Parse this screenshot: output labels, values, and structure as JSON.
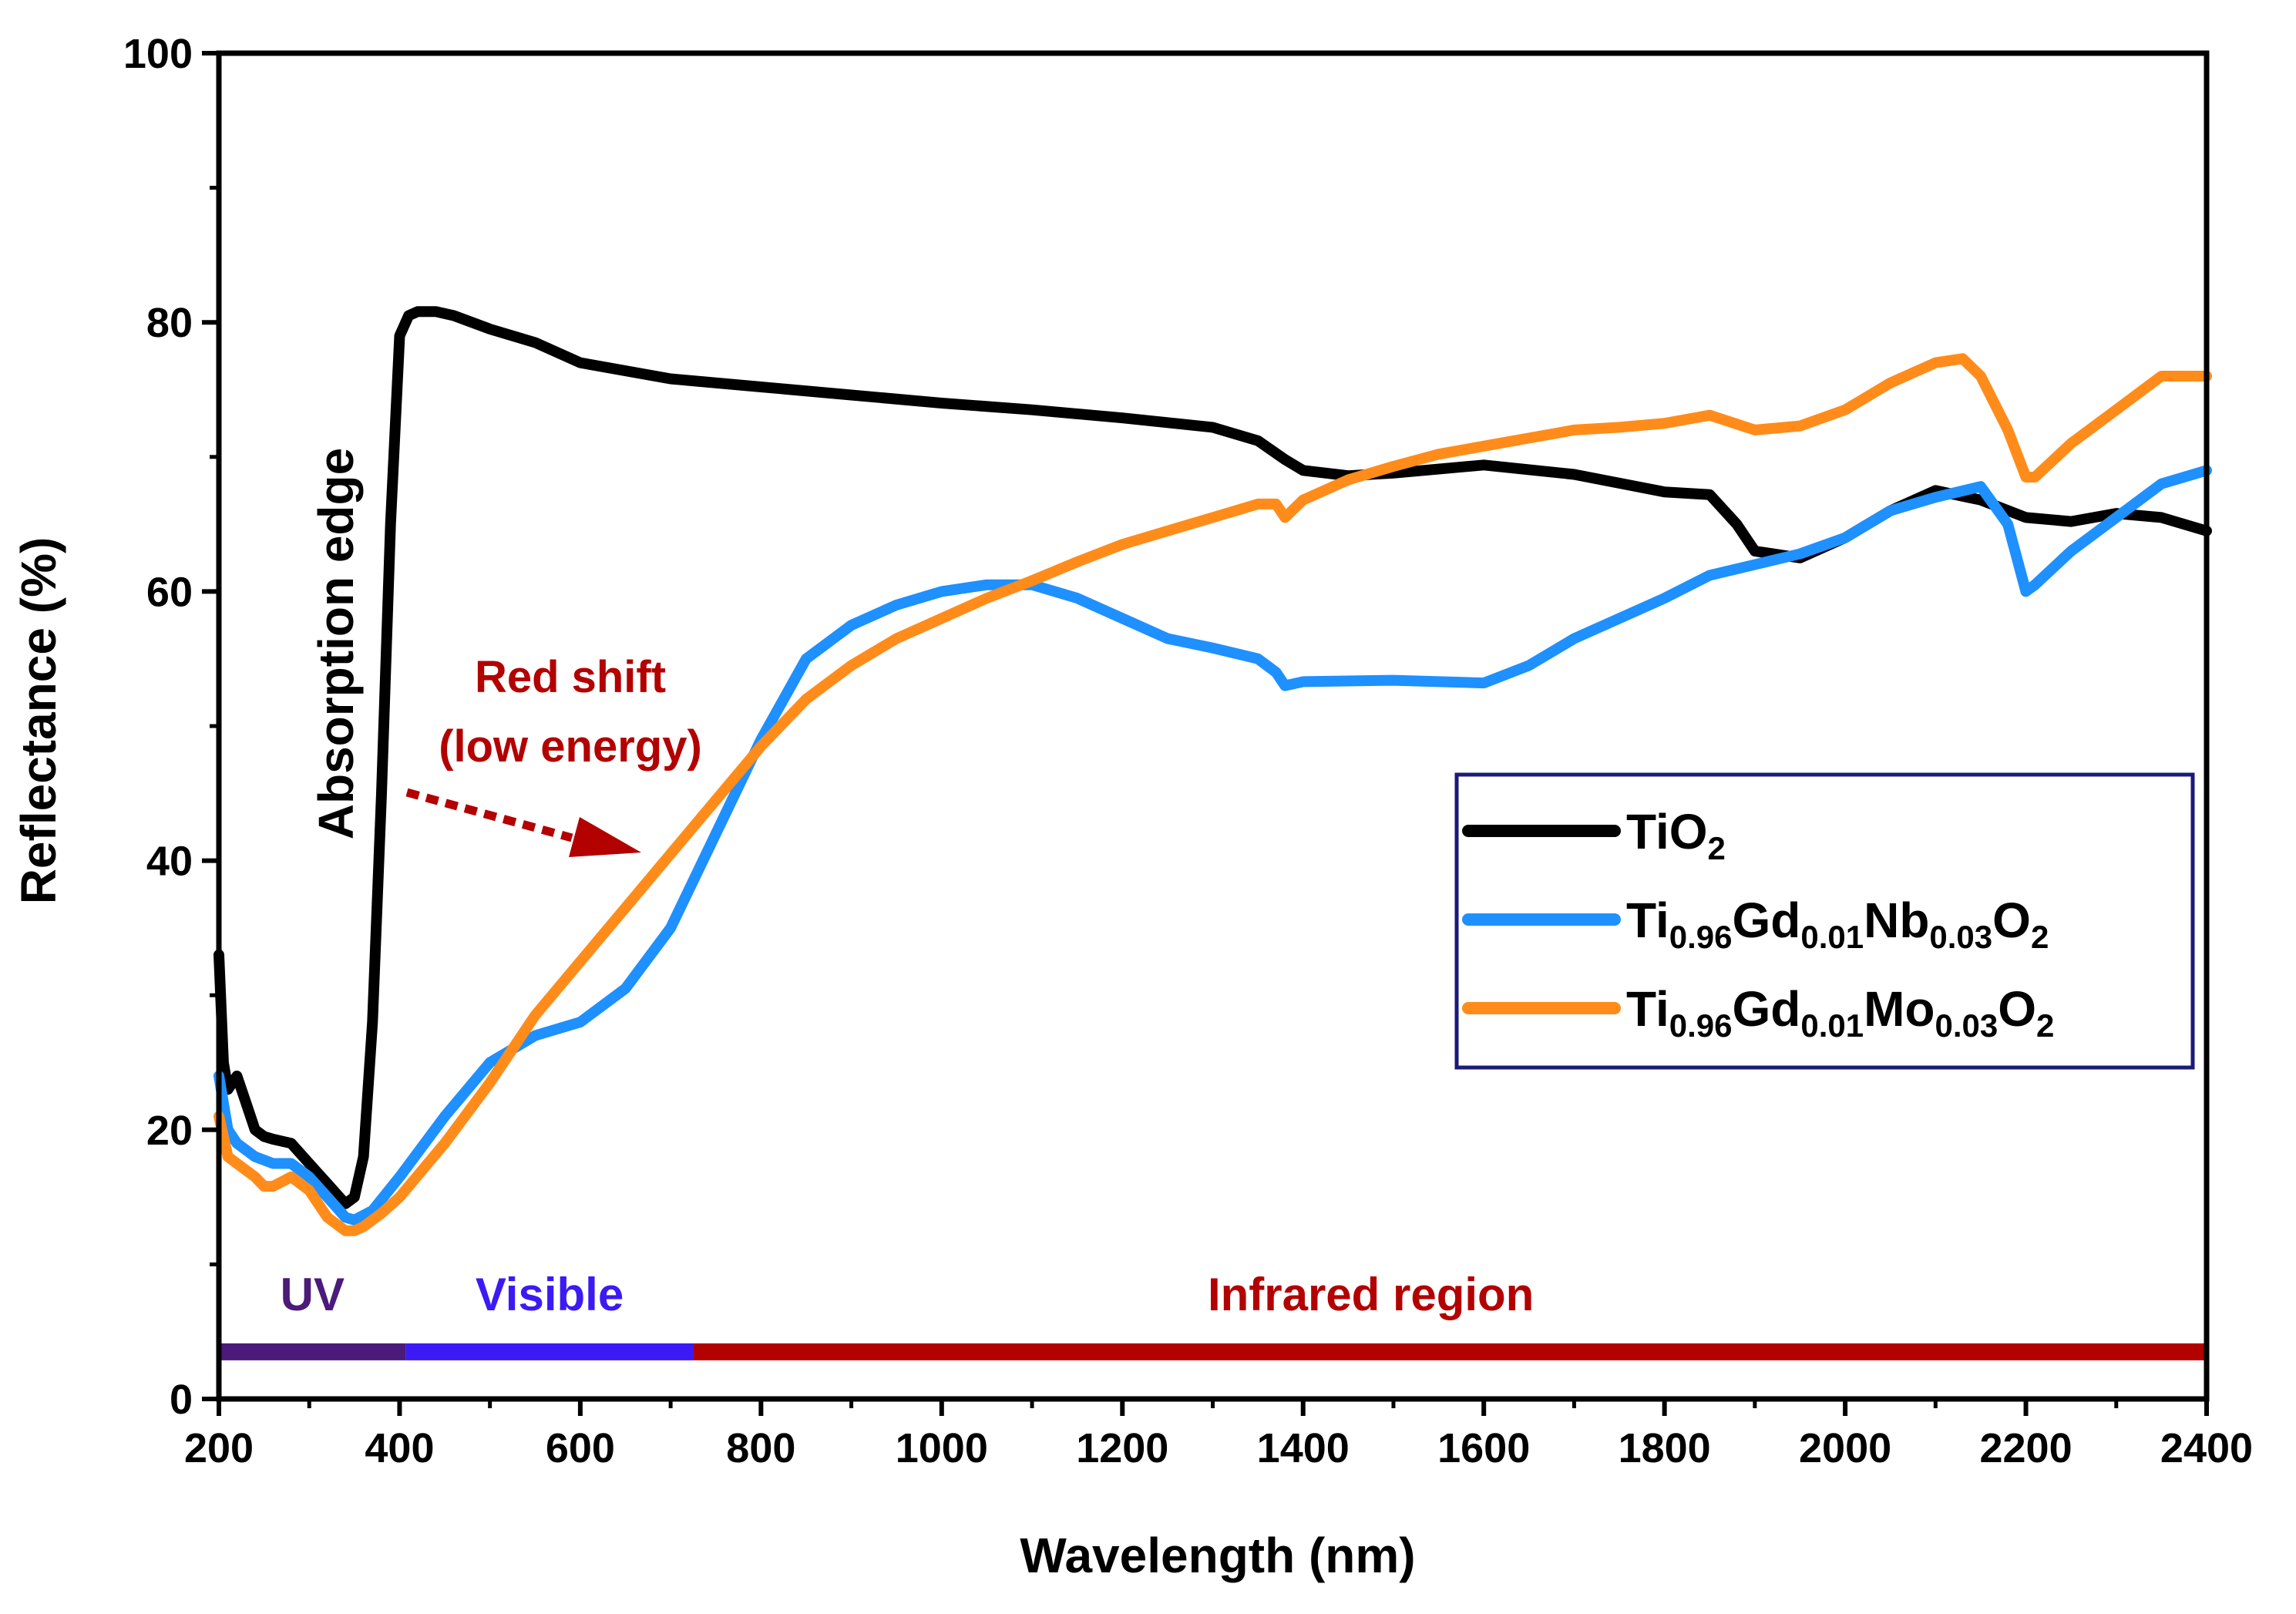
{
  "chart_data": {
    "type": "line",
    "title": "",
    "xlabel": "Wavelength (nm)",
    "ylabel": "Reflectance (%)",
    "xlim": [
      200,
      2400
    ],
    "ylim": [
      0,
      100
    ],
    "xticks": [
      200,
      400,
      600,
      800,
      1000,
      1200,
      1400,
      1600,
      1800,
      2000,
      2200,
      2400
    ],
    "yticks": [
      0,
      20,
      40,
      60,
      80,
      100
    ],
    "grid": false,
    "legend_position": "right",
    "series": [
      {
        "name": "TiO2",
        "legend": {
          "base": "TiO",
          "parts": [
            {
              "t": "2",
              "sub": true
            }
          ]
        },
        "color": "#000000",
        "x": [
          200,
          205,
          210,
          220,
          230,
          240,
          250,
          260,
          280,
          300,
          320,
          340,
          350,
          360,
          370,
          380,
          390,
          400,
          410,
          420,
          440,
          460,
          500,
          550,
          600,
          700,
          800,
          900,
          1000,
          1100,
          1200,
          1300,
          1350,
          1380,
          1400,
          1450,
          1500,
          1600,
          1700,
          1800,
          1850,
          1880,
          1900,
          1950,
          2000,
          2050,
          2100,
          2150,
          2200,
          2250,
          2300,
          2350,
          2400
        ],
        "y": [
          33,
          25,
          23,
          24,
          22,
          20,
          19.5,
          19.3,
          19,
          17.5,
          16,
          14.5,
          15,
          18,
          28,
          45,
          65,
          79,
          80.5,
          80.8,
          80.8,
          80.5,
          79.5,
          78.5,
          77,
          75.8,
          75.2,
          74.6,
          74,
          73.5,
          72.9,
          72.2,
          71.2,
          69.8,
          69,
          68.6,
          68.8,
          69.4,
          68.7,
          67.4,
          67.2,
          65,
          63,
          62.5,
          64,
          66,
          67.5,
          66.8,
          65.5,
          65.2,
          65.8,
          65.5,
          64.5
        ]
      },
      {
        "name": "Ti0.96Gd0.01Nb0.03O2",
        "legend": {
          "base": "Ti",
          "parts": [
            {
              "t": "0.96",
              "sub": true
            },
            {
              "t": "Gd"
            },
            {
              "t": "0.01",
              "sub": true
            },
            {
              "t": "Nb"
            },
            {
              "t": "0.03",
              "sub": true
            },
            {
              "t": "O"
            },
            {
              "t": "2",
              "sub": true
            }
          ]
        },
        "color": "#1e90ff",
        "x": [
          200,
          210,
          220,
          240,
          260,
          280,
          300,
          320,
          340,
          350,
          370,
          400,
          450,
          500,
          550,
          600,
          650,
          700,
          750,
          800,
          850,
          900,
          950,
          1000,
          1050,
          1100,
          1150,
          1200,
          1250,
          1300,
          1350,
          1370,
          1380,
          1400,
          1500,
          1600,
          1650,
          1700,
          1800,
          1850,
          1900,
          1950,
          2000,
          2050,
          2100,
          2150,
          2180,
          2200,
          2210,
          2250,
          2300,
          2350,
          2400
        ],
        "y": [
          24,
          20,
          19,
          18,
          17.5,
          17.5,
          16.5,
          15,
          13.5,
          13.3,
          14,
          16.5,
          21,
          25,
          27,
          28,
          30.5,
          35,
          42,
          49,
          55,
          57.5,
          59,
          60,
          60.5,
          60.5,
          59.5,
          58,
          56.5,
          55.8,
          55,
          54,
          53,
          53.3,
          53.4,
          53.2,
          54.5,
          56.5,
          59.5,
          61.2,
          62,
          62.8,
          64,
          66,
          67,
          67.8,
          65,
          60,
          60.5,
          63,
          65.5,
          68,
          69
        ]
      },
      {
        "name": "Ti0.96Gd0.01Mo0.03O2",
        "legend": {
          "base": "Ti",
          "parts": [
            {
              "t": "0.96",
              "sub": true
            },
            {
              "t": "Gd"
            },
            {
              "t": "0.01",
              "sub": true
            },
            {
              "t": "Mo"
            },
            {
              "t": "0.03",
              "sub": true
            },
            {
              "t": "O"
            },
            {
              "t": "2",
              "sub": true
            }
          ]
        },
        "color": "#ff8c1a",
        "x": [
          200,
          210,
          220,
          240,
          250,
          260,
          280,
          300,
          320,
          340,
          350,
          360,
          380,
          400,
          450,
          500,
          550,
          600,
          650,
          700,
          750,
          800,
          850,
          900,
          950,
          1000,
          1050,
          1100,
          1150,
          1200,
          1250,
          1300,
          1350,
          1370,
          1380,
          1400,
          1450,
          1500,
          1550,
          1600,
          1650,
          1700,
          1750,
          1800,
          1850,
          1900,
          1950,
          2000,
          2050,
          2100,
          2130,
          2150,
          2180,
          2200,
          2210,
          2250,
          2300,
          2350,
          2400
        ],
        "y": [
          21,
          18,
          17.5,
          16.5,
          15.8,
          15.8,
          16.5,
          15.5,
          13.5,
          12.5,
          12.5,
          12.8,
          13.8,
          15,
          19,
          23.5,
          28.5,
          32.5,
          36.5,
          40.5,
          44.5,
          48.5,
          52,
          54.5,
          56.5,
          58,
          59.5,
          60.8,
          62.2,
          63.5,
          64.5,
          65.5,
          66.5,
          66.5,
          65.5,
          66.8,
          68.3,
          69.3,
          70.2,
          70.8,
          71.4,
          72,
          72.2,
          72.5,
          73.1,
          72,
          72.3,
          73.5,
          75.5,
          77,
          77.3,
          76,
          72,
          68.5,
          68.5,
          71,
          73.5,
          76,
          76
        ]
      }
    ],
    "annotations": {
      "absorption_edge": "Absorption edge",
      "red_shift_line1": "Red shift",
      "red_shift_line2": "(low energy)"
    },
    "regions": [
      {
        "label": "UV",
        "from": 200,
        "to": 407,
        "color": "#4b1a7a"
      },
      {
        "label": "Visible",
        "from": 407,
        "to": 725,
        "color": "#3b1af5"
      },
      {
        "label": "Infrared region",
        "from": 725,
        "to": 2400,
        "color": "#b30000"
      }
    ]
  },
  "colors": {
    "red_shift": "#b30000",
    "legend_border": "#1a1a7a",
    "uv_label": "#4b1a7a",
    "visible_label": "#3b1af5",
    "ir_label": "#b30000"
  }
}
